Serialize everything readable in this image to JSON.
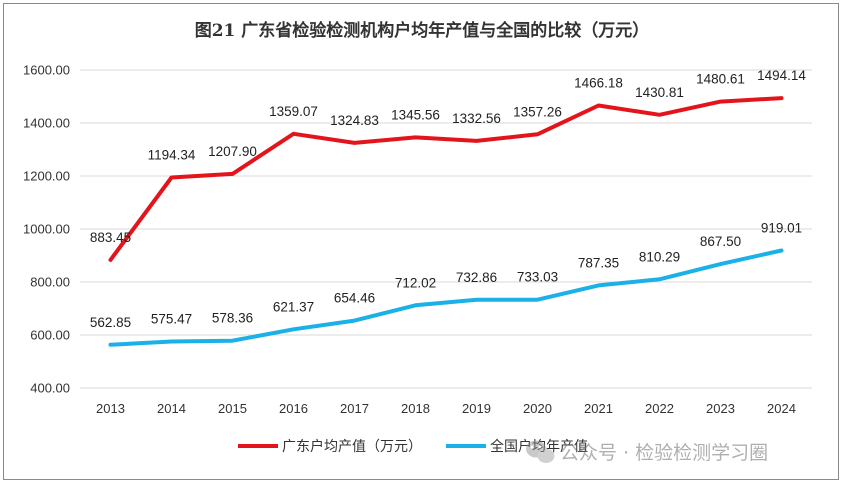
{
  "chart_data": {
    "type": "line",
    "title": "图21  广东省检验检测机构户均年产值与全国的比较（万元）",
    "x": [
      "2013",
      "2014",
      "2015",
      "2016",
      "2017",
      "2018",
      "2019",
      "2020",
      "2021",
      "2022",
      "2023",
      "2024"
    ],
    "ylim": [
      400,
      1600
    ],
    "y_ticks": [
      "400.00",
      "600.00",
      "800.00",
      "1000.00",
      "1200.00",
      "1400.00",
      "1600.00"
    ],
    "grid": true,
    "legend_position": "bottom",
    "series": [
      {
        "name": "广东户均产值（万元）",
        "color": "#e3141b",
        "values": [
          883.45,
          1194.34,
          1207.9,
          1359.07,
          1324.83,
          1345.56,
          1332.56,
          1357.26,
          1466.18,
          1430.81,
          1480.61,
          1494.14
        ],
        "labels": [
          "883.45",
          "1194.34",
          "1207.90",
          "1359.07",
          "1324.83",
          "1345.56",
          "1332.56",
          "1357.26",
          "1466.18",
          "1430.81",
          "1480.61",
          "1494.14"
        ]
      },
      {
        "name": "全国户均年产值",
        "color": "#1ab0e8",
        "values": [
          562.85,
          575.47,
          578.36,
          621.37,
          654.46,
          712.02,
          732.86,
          733.03,
          787.35,
          810.29,
          867.5,
          919.01
        ],
        "labels": [
          "562.85",
          "575.47",
          "578.36",
          "621.37",
          "654.46",
          "712.02",
          "732.86",
          "733.03",
          "787.35",
          "810.29",
          "867.50",
          "919.01"
        ]
      }
    ]
  },
  "watermark": {
    "icon": "wechat-icon",
    "text": "公众号 · 检验检测学习圈"
  }
}
